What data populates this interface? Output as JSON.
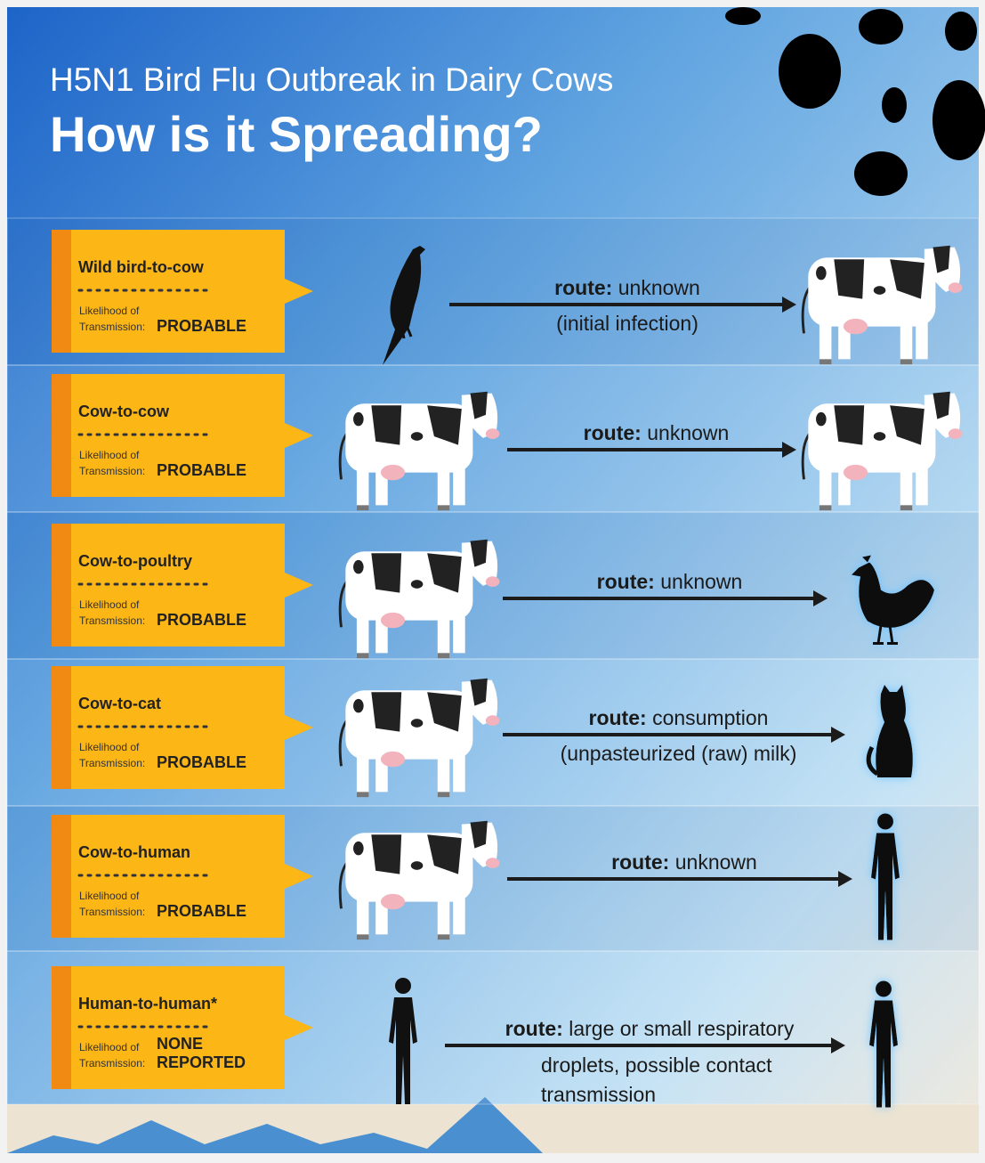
{
  "header": {
    "subtitle": "H5N1 Bird Flu Outbreak in Dairy Cows",
    "title": "How is it Spreading?"
  },
  "rows": [
    {
      "label": "Wild bird-to-cow",
      "likelihood_label": [
        "Likelihood of",
        "Transmission:"
      ],
      "likelihood": [
        "PROBABLE"
      ],
      "route_label": "route:",
      "route": [
        "unknown"
      ],
      "route_note": [
        "(initial infection)"
      ]
    },
    {
      "label": "Cow-to-cow",
      "likelihood_label": [
        "Likelihood of",
        "Transmission:"
      ],
      "likelihood": [
        "PROBABLE"
      ],
      "route_label": "route:",
      "route": [
        "unknown"
      ],
      "route_note": []
    },
    {
      "label": "Cow-to-poultry",
      "likelihood_label": [
        "Likelihood of",
        "Transmission:"
      ],
      "likelihood": [
        "PROBABLE"
      ],
      "route_label": "route:",
      "route": [
        "unknown"
      ],
      "route_note": []
    },
    {
      "label": "Cow-to-cat",
      "likelihood_label": [
        "Likelihood of",
        "Transmission:"
      ],
      "likelihood": [
        "PROBABLE"
      ],
      "route_label": "route:",
      "route": [
        "consumption"
      ],
      "route_note": [
        "(unpasteurized (raw) milk)"
      ]
    },
    {
      "label": "Cow-to-human",
      "likelihood_label": [
        "Likelihood of",
        "Transmission:"
      ],
      "likelihood": [
        "PROBABLE"
      ],
      "route_label": "route:",
      "route": [
        "unknown"
      ],
      "route_note": []
    },
    {
      "label": "Human-to-human*",
      "likelihood_label": [
        "Likelihood of",
        "Transmission:"
      ],
      "likelihood": [
        "NONE",
        "REPORTED"
      ],
      "route_label": "route:",
      "route": [
        "large or small respiratory"
      ],
      "route_note": [
        "droplets, possible contact",
        "transmission"
      ]
    }
  ]
}
